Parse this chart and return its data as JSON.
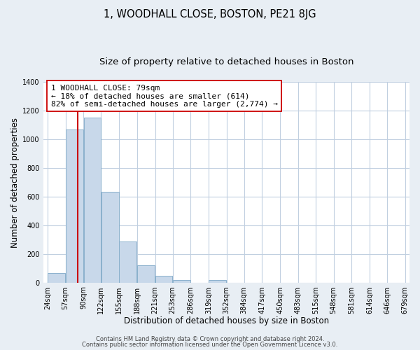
{
  "title": "1, WOODHALL CLOSE, BOSTON, PE21 8JG",
  "subtitle": "Size of property relative to detached houses in Boston",
  "xlabel": "Distribution of detached houses by size in Boston",
  "ylabel": "Number of detached properties",
  "footer_lines": [
    "Contains HM Land Registry data © Crown copyright and database right 2024.",
    "Contains public sector information licensed under the Open Government Licence v3.0."
  ],
  "bin_edges": [
    24,
    57,
    90,
    122,
    155,
    188,
    221,
    253,
    286,
    319,
    352,
    384,
    417,
    450,
    483,
    515,
    548,
    581,
    614,
    646,
    679
  ],
  "bin_labels": [
    "24sqm",
    "57sqm",
    "90sqm",
    "122sqm",
    "155sqm",
    "188sqm",
    "221sqm",
    "253sqm",
    "286sqm",
    "319sqm",
    "352sqm",
    "384sqm",
    "417sqm",
    "450sqm",
    "483sqm",
    "515sqm",
    "548sqm",
    "581sqm",
    "614sqm",
    "646sqm",
    "679sqm"
  ],
  "bar_heights": [
    65,
    1070,
    1155,
    635,
    285,
    120,
    48,
    20,
    0,
    20,
    0,
    0,
    0,
    0,
    0,
    0,
    0,
    0,
    0,
    0
  ],
  "bar_color": "#c8d8ea",
  "bar_edge_color": "#8ab0cc",
  "property_line_x": 79,
  "property_line_color": "#cc0000",
  "annotation_text": "1 WOODHALL CLOSE: 79sqm\n← 18% of detached houses are smaller (614)\n82% of semi-detached houses are larger (2,774) →",
  "annotation_box_color": "#ffffff",
  "annotation_box_edge": "#cc0000",
  "ylim": [
    0,
    1400
  ],
  "yticks": [
    0,
    200,
    400,
    600,
    800,
    1000,
    1200,
    1400
  ],
  "background_color": "#e8eef4",
  "plot_background_color": "#ffffff",
  "grid_color": "#c0cfe0",
  "title_fontsize": 10.5,
  "subtitle_fontsize": 9.5,
  "axis_label_fontsize": 8.5,
  "tick_fontsize": 7,
  "annotation_fontsize": 8,
  "footer_fontsize": 6
}
